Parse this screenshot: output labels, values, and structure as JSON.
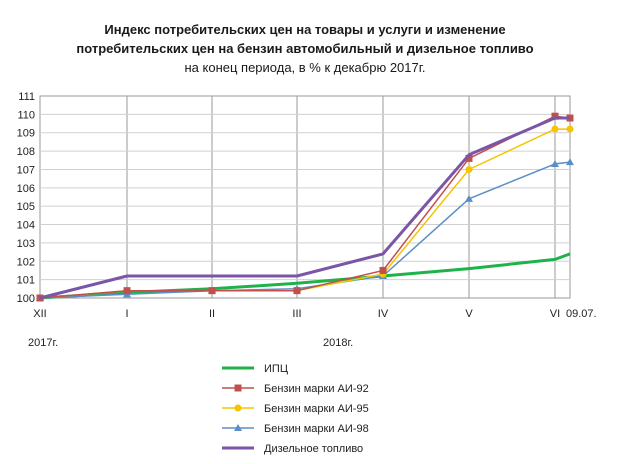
{
  "chart_data": {
    "type": "line",
    "title_line1": "Индекс потребительских  цен на товары и услуги и изменение",
    "title_line2": "потребительских  цен на бензин автомобильный  и дизельное топливо",
    "subtitle": "на конец периода, в % к декабрю 2017г.",
    "x_labels": [
      "XII",
      "I",
      "II",
      "III",
      "IV",
      "V",
      "VI",
      "09.07."
    ],
    "year_labels": [
      "2017г.",
      "2018г."
    ],
    "ylim": [
      100,
      111
    ],
    "yticks": [
      100,
      101,
      102,
      103,
      104,
      105,
      106,
      107,
      108,
      109,
      110,
      111
    ],
    "grid": true,
    "legend_position": "bottom",
    "series": [
      {
        "name": "ИПЦ",
        "color": "#1fb24a",
        "marker": "none",
        "values": [
          100.0,
          100.3,
          100.5,
          100.8,
          101.2,
          101.6,
          102.1,
          102.4
        ]
      },
      {
        "name": "Бензин марки АИ-92",
        "color": "#c0504d",
        "marker": "square",
        "values": [
          100.0,
          100.4,
          100.4,
          100.4,
          101.5,
          107.6,
          109.9,
          109.8
        ]
      },
      {
        "name": "Бензин марки АИ-95",
        "color": "#f5c400",
        "marker": "circle",
        "values": [
          100.0,
          100.4,
          100.4,
          100.4,
          101.3,
          107.0,
          109.2,
          109.2
        ]
      },
      {
        "name": "Бензин марки АИ-98",
        "color": "#5b8ec8",
        "marker": "triangle",
        "values": [
          100.0,
          100.2,
          100.4,
          100.5,
          101.2,
          105.4,
          107.3,
          107.4
        ]
      },
      {
        "name": "Дизельное топливо",
        "color": "#7b56a8",
        "marker": "none",
        "values": [
          100.0,
          101.2,
          101.2,
          101.2,
          102.4,
          107.8,
          109.8,
          109.8
        ]
      }
    ]
  }
}
